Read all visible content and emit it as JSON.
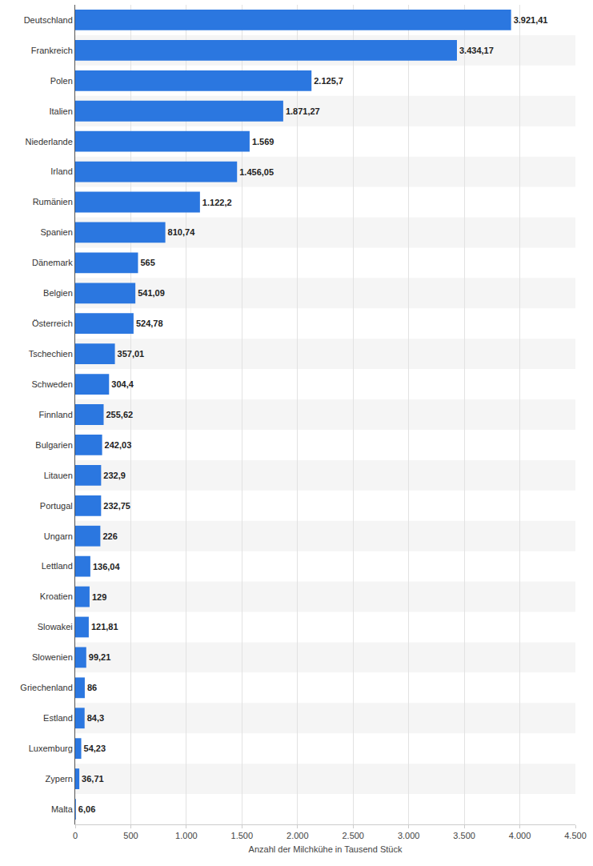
{
  "chart_data": {
    "type": "bar",
    "orientation": "horizontal",
    "x_label": "Anzahl der Milchkühe in Tausend Stück",
    "categories": [
      "Deutschland",
      "Frankreich",
      "Polen",
      "Italien",
      "Niederlande",
      "Irland",
      "Rumänien",
      "Spanien",
      "Dänemark",
      "Belgien",
      "Österreich",
      "Tschechien",
      "Schweden",
      "Finnland",
      "Bulgarien",
      "Litauen",
      "Portugal",
      "Ungarn",
      "Lettland",
      "Kroatien",
      "Slowakei",
      "Slowenien",
      "Griechenland",
      "Estland",
      "Luxemburg",
      "Zypern",
      "Malta"
    ],
    "values": [
      3921.41,
      3434.17,
      2125.7,
      1871.27,
      1569,
      1456.05,
      1122.2,
      810.74,
      565,
      541.09,
      524.78,
      357.01,
      304.4,
      255.62,
      242.03,
      232.9,
      232.75,
      226,
      136.04,
      129,
      121.81,
      99.21,
      86,
      84.3,
      54.23,
      36.71,
      6.06
    ],
    "value_labels": [
      "3.921,41",
      "3.434,17",
      "2.125,7",
      "1.871,27",
      "1.569",
      "1.456,05",
      "1.122,2",
      "810,74",
      "565",
      "541,09",
      "524,78",
      "357,01",
      "304,4",
      "255,62",
      "242,03",
      "232,9",
      "232,75",
      "226",
      "136,04",
      "129",
      "121,81",
      "99,21",
      "86",
      "84,3",
      "54,23",
      "36,71",
      "6,06"
    ],
    "data_labels": true,
    "color": "#2b77e0",
    "xlim": [
      0,
      4500
    ],
    "xticks": [
      0,
      500,
      {
        "value": 1000,
        "label": "1.000"
      },
      {
        "value": 1500,
        "label": "1.500"
      },
      {
        "value": 2000,
        "label": "2.000"
      },
      {
        "value": 2500,
        "label": "2.500"
      },
      {
        "value": 3000,
        "label": "3.000"
      },
      {
        "value": 3500,
        "label": "3.500"
      },
      {
        "value": 4000,
        "label": "4.000"
      },
      {
        "value": 4500,
        "label": "4.500"
      }
    ],
    "grid": true
  }
}
